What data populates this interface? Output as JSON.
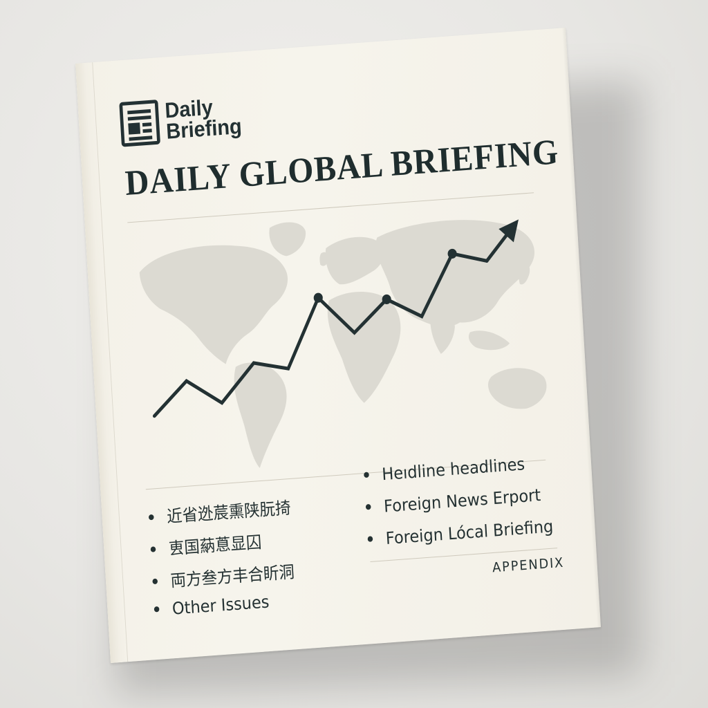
{
  "logo": {
    "line1": "Daily",
    "line2": "Briefing",
    "icon": "newspaper-icon"
  },
  "title": "DAILY GLOBAL BRIEFING",
  "colors": {
    "ink": "#233133",
    "paper": "#f4f1e8",
    "map": "#dcdad2"
  },
  "chart_data": {
    "type": "line",
    "title": "",
    "xlabel": "",
    "ylabel": "",
    "series": [
      {
        "values": [
          1.0,
          3.0,
          1.5,
          3.8,
          3.3,
          7.5,
          5.2,
          7.1,
          5.9,
          9.6,
          9.0,
          11.4
        ]
      }
    ],
    "markers_at_index": [
      5,
      7,
      9
    ],
    "arrowhead_at_end": true,
    "grid": false
  },
  "bullets_left": [
    {
      "text": "近省迯莀熏陕朊掎"
    },
    {
      "text": "叀国蒳蒠显囚"
    },
    {
      "text": "両方叁方丰合盺洞"
    },
    {
      "text": "Other Issues"
    }
  ],
  "bullets_right": [
    {
      "text": "Heıdline headlines"
    },
    {
      "text": "Foreign News Erport"
    },
    {
      "text": "Foreign Lócal Briefing"
    }
  ],
  "footer": {
    "appendix": "APPENDIX"
  }
}
